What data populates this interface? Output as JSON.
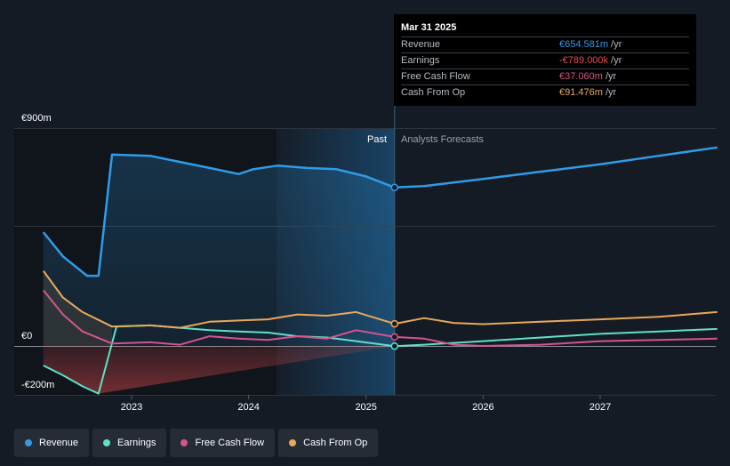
{
  "chart_data": {
    "type": "line",
    "ylim": [
      -200,
      900
    ],
    "ytick_labels": [
      "€900m",
      "€0",
      "-€200m"
    ],
    "x_ticks": [
      "2023",
      "2024",
      "2025",
      "2026",
      "2027"
    ],
    "past_label": "Past",
    "forecast_label": "Analysts Forecasts",
    "series": [
      {
        "name": "Revenue",
        "color": "#2f9ce8",
        "points": [
          [
            "2022-04-01",
            470
          ],
          [
            "2022-06-01",
            370
          ],
          [
            "2022-08-15",
            290
          ],
          [
            "2022-09-20",
            290
          ],
          [
            "2022-11-01",
            790
          ],
          [
            "2023-03-01",
            785
          ],
          [
            "2023-06-01",
            760
          ],
          [
            "2023-09-01",
            735
          ],
          [
            "2023-12-01",
            710
          ],
          [
            "2024-01-15",
            730
          ],
          [
            "2024-04-01",
            745
          ],
          [
            "2024-07-01",
            735
          ],
          [
            "2024-10-01",
            730
          ],
          [
            "2025-01-01",
            700
          ],
          [
            "2025-03-31",
            654.581
          ],
          [
            "2025-07-01",
            660
          ],
          [
            "2026-01-01",
            690
          ],
          [
            "2026-07-01",
            720
          ],
          [
            "2027-01-01",
            750
          ],
          [
            "2027-07-01",
            785
          ],
          [
            "2028-01-01",
            820
          ]
        ]
      },
      {
        "name": "Earnings",
        "color": "#5fe0c8",
        "points": [
          [
            "2022-04-01",
            -80
          ],
          [
            "2022-06-01",
            -120
          ],
          [
            "2022-08-01",
            -165
          ],
          [
            "2022-09-20",
            -195
          ],
          [
            "2022-11-15",
            80
          ],
          [
            "2023-03-01",
            85
          ],
          [
            "2023-06-01",
            75
          ],
          [
            "2023-09-01",
            65
          ],
          [
            "2023-12-01",
            60
          ],
          [
            "2024-03-01",
            55
          ],
          [
            "2024-06-01",
            40
          ],
          [
            "2024-09-01",
            35
          ],
          [
            "2024-12-01",
            20
          ],
          [
            "2025-03-31",
            -0.789
          ],
          [
            "2025-07-01",
            5
          ],
          [
            "2026-01-01",
            20
          ],
          [
            "2026-07-01",
            35
          ],
          [
            "2027-01-01",
            50
          ],
          [
            "2027-07-01",
            60
          ],
          [
            "2028-01-01",
            70
          ]
        ]
      },
      {
        "name": "Free Cash Flow",
        "color": "#d6548d",
        "points": [
          [
            "2022-04-01",
            230
          ],
          [
            "2022-06-01",
            130
          ],
          [
            "2022-08-01",
            60
          ],
          [
            "2022-11-01",
            10
          ],
          [
            "2023-03-01",
            15
          ],
          [
            "2023-06-01",
            5
          ],
          [
            "2023-09-01",
            40
          ],
          [
            "2023-12-01",
            30
          ],
          [
            "2024-03-01",
            25
          ],
          [
            "2024-06-01",
            40
          ],
          [
            "2024-09-01",
            30
          ],
          [
            "2024-12-01",
            65
          ],
          [
            "2025-03-31",
            37.06
          ],
          [
            "2025-07-01",
            30
          ],
          [
            "2025-10-01",
            5
          ],
          [
            "2026-01-01",
            0
          ],
          [
            "2026-07-01",
            5
          ],
          [
            "2027-01-01",
            20
          ],
          [
            "2027-07-01",
            25
          ],
          [
            "2028-01-01",
            30
          ]
        ]
      },
      {
        "name": "Cash From Op",
        "color": "#e9a85a",
        "points": [
          [
            "2022-04-01",
            310
          ],
          [
            "2022-06-01",
            200
          ],
          [
            "2022-08-01",
            140
          ],
          [
            "2022-11-01",
            80
          ],
          [
            "2023-03-01",
            85
          ],
          [
            "2023-06-01",
            75
          ],
          [
            "2023-09-01",
            100
          ],
          [
            "2023-12-01",
            105
          ],
          [
            "2024-03-01",
            110
          ],
          [
            "2024-06-01",
            130
          ],
          [
            "2024-09-01",
            125
          ],
          [
            "2024-12-01",
            140
          ],
          [
            "2025-03-31",
            91.476
          ],
          [
            "2025-07-01",
            115
          ],
          [
            "2025-10-01",
            95
          ],
          [
            "2026-01-01",
            90
          ],
          [
            "2026-07-01",
            100
          ],
          [
            "2027-01-01",
            110
          ],
          [
            "2027-07-01",
            120
          ],
          [
            "2028-01-01",
            140
          ]
        ]
      }
    ],
    "highlight_date": "2025-03-31",
    "grid": true,
    "legend_position": "bottom-left"
  },
  "tooltip": {
    "date": "Mar 31 2025",
    "rows": [
      {
        "label": "Revenue",
        "value": "€654.581m",
        "unit": "/yr",
        "color": "#2f9ce8"
      },
      {
        "label": "Earnings",
        "value": "-€789.000k",
        "unit": "/yr",
        "color": "#e74c4c"
      },
      {
        "label": "Free Cash Flow",
        "value": "€37.060m",
        "unit": "/yr",
        "color": "#d6548d"
      },
      {
        "label": "Cash From Op",
        "value": "€91.476m",
        "unit": "/yr",
        "color": "#e9a85a"
      }
    ]
  },
  "legend": [
    {
      "label": "Revenue",
      "color": "#2f9ce8"
    },
    {
      "label": "Earnings",
      "color": "#5fe0c8"
    },
    {
      "label": "Free Cash Flow",
      "color": "#d6548d"
    },
    {
      "label": "Cash From Op",
      "color": "#e9a85a"
    }
  ]
}
